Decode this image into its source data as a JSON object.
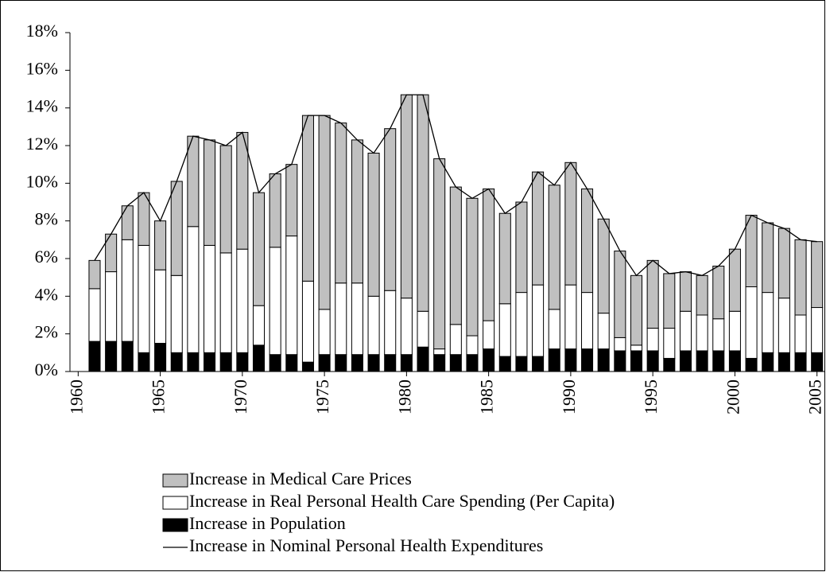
{
  "chart_data": {
    "type": "bar",
    "stacked": true,
    "x": [
      1961,
      1962,
      1963,
      1964,
      1965,
      1966,
      1967,
      1968,
      1969,
      1970,
      1971,
      1972,
      1973,
      1974,
      1975,
      1976,
      1977,
      1978,
      1979,
      1980,
      1981,
      1982,
      1983,
      1984,
      1985,
      1986,
      1987,
      1988,
      1989,
      1990,
      1991,
      1992,
      1993,
      1994,
      1995,
      1996,
      1997,
      1998,
      1999,
      2000,
      2001,
      2002,
      2003,
      2004,
      2005
    ],
    "series": [
      {
        "name": "Increase in Medical Care Prices",
        "type": "bar",
        "color": "#c0c0c0",
        "values": [
          1.5,
          2.0,
          1.8,
          2.8,
          2.6,
          5.0,
          4.8,
          5.6,
          5.7,
          6.2,
          6.0,
          3.9,
          3.8,
          8.8,
          10.3,
          8.5,
          7.6,
          7.6,
          8.6,
          10.8,
          11.5,
          10.1,
          7.3,
          7.3,
          7.0,
          4.8,
          4.8,
          6.0,
          6.6,
          6.5,
          5.5,
          5.0,
          4.6,
          3.7,
          3.6,
          2.9,
          2.1,
          2.1,
          2.8,
          3.3,
          3.8,
          3.7,
          3.7,
          4.0,
          3.5
        ]
      },
      {
        "name": "Increase in Real Personal Health Care Spending (Per Capita)",
        "type": "bar",
        "color": "#ffffff",
        "values": [
          2.8,
          3.7,
          5.4,
          5.7,
          3.9,
          4.1,
          6.7,
          5.7,
          5.3,
          5.5,
          2.1,
          5.7,
          6.3,
          4.3,
          2.4,
          3.8,
          3.8,
          3.1,
          3.4,
          3.0,
          1.9,
          0.3,
          1.6,
          1.0,
          1.5,
          2.8,
          3.4,
          3.8,
          2.1,
          3.4,
          3.0,
          1.9,
          0.7,
          0.3,
          1.2,
          1.6,
          2.1,
          1.9,
          1.7,
          2.1,
          3.8,
          3.2,
          2.9,
          2.0,
          2.4
        ]
      },
      {
        "name": "Increase in Population",
        "type": "bar",
        "color": "#000000",
        "values": [
          1.6,
          1.6,
          1.6,
          1.0,
          1.5,
          1.0,
          1.0,
          1.0,
          1.0,
          1.0,
          1.4,
          0.9,
          0.9,
          0.5,
          0.9,
          0.9,
          0.9,
          0.9,
          0.9,
          0.9,
          1.3,
          0.9,
          0.9,
          0.9,
          1.2,
          0.8,
          0.8,
          0.8,
          1.2,
          1.2,
          1.2,
          1.2,
          1.1,
          1.1,
          1.1,
          0.7,
          1.1,
          1.1,
          1.1,
          1.1,
          0.7,
          1.0,
          1.0,
          1.0,
          1.0
        ]
      },
      {
        "name": "Increase in Nominal Personal Health Expenditures",
        "type": "line",
        "color": "#000000",
        "values": [
          5.9,
          7.3,
          8.8,
          9.5,
          8.0,
          10.1,
          12.5,
          12.3,
          12.0,
          12.7,
          9.5,
          10.5,
          11.0,
          13.6,
          13.6,
          13.2,
          12.3,
          11.6,
          12.9,
          14.7,
          14.7,
          11.3,
          9.8,
          9.2,
          9.7,
          8.4,
          9.0,
          10.6,
          9.9,
          11.1,
          9.7,
          8.1,
          6.4,
          5.1,
          5.9,
          5.2,
          5.3,
          5.1,
          5.6,
          6.5,
          8.3,
          7.9,
          7.6,
          7.0,
          6.9
        ]
      }
    ],
    "xlim": [
      1959.5,
      2005.5
    ],
    "xticks": [
      1960,
      1965,
      1970,
      1975,
      1980,
      1985,
      1990,
      1995,
      2000,
      2005
    ],
    "ylim": [
      0,
      18
    ],
    "yticks": [
      {
        "value": 0,
        "label": "0%"
      },
      {
        "value": 2,
        "label": "2%"
      },
      {
        "value": 4,
        "label": "4%"
      },
      {
        "value": 6,
        "label": "6%"
      },
      {
        "value": 8,
        "label": "8%"
      },
      {
        "value": 10,
        "label": "10%"
      },
      {
        "value": 12,
        "label": "12%"
      },
      {
        "value": 14,
        "label": "14%"
      },
      {
        "value": 16,
        "label": "16%"
      },
      {
        "value": 18,
        "label": "18%"
      }
    ],
    "grid": false
  }
}
